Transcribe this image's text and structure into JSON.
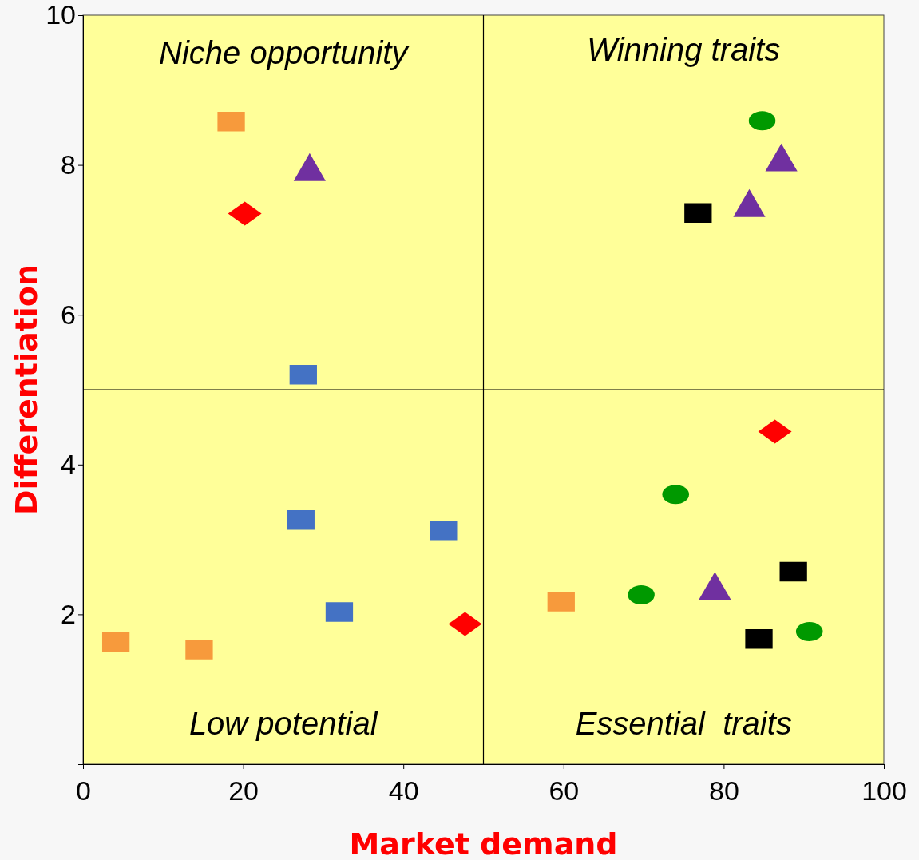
{
  "chart_data": {
    "type": "scatter",
    "xlabel": "Market demand",
    "ylabel": "Differentiation",
    "xlim": [
      0,
      100
    ],
    "ylim": [
      0,
      10
    ],
    "xticks": [
      0,
      20,
      40,
      60,
      80,
      100
    ],
    "yticks": [
      2,
      4,
      6,
      8,
      10
    ],
    "grid": false,
    "legend": false,
    "annotations": [
      "Niche opportunity",
      "Winning traits",
      "Low potential",
      "Essential  traits"
    ],
    "ref_lines": [
      {
        "axis": "x",
        "value": 50,
        "color": "#000000"
      },
      {
        "axis": "y",
        "value": 5,
        "color": "#000000"
      }
    ],
    "series": [
      {
        "color": "#f79a3c",
        "marker": "square",
        "x": [
          18.5,
          4.1,
          14.5,
          59.7
        ],
        "values": [
          8.58,
          1.63,
          1.53,
          2.17
        ]
      },
      {
        "color": "#7030a0",
        "marker": "triangle",
        "x": [
          28.3,
          87.2,
          83.2,
          78.9
        ],
        "values": [
          7.91,
          8.04,
          7.43,
          2.32
        ]
      },
      {
        "color": "#ff0000",
        "marker": "diamond",
        "x": [
          20.2,
          47.7,
          86.4
        ],
        "values": [
          7.35,
          1.87,
          4.44
        ]
      },
      {
        "color": "#4472c4",
        "marker": "square",
        "x": [
          27.5,
          27.2,
          45.0,
          32.0
        ],
        "values": [
          5.2,
          3.26,
          3.12,
          2.03
        ]
      },
      {
        "color": "#009900",
        "marker": "circle",
        "x": [
          84.8,
          74.0,
          69.7,
          90.7
        ],
        "values": [
          8.59,
          3.6,
          2.26,
          1.77
        ]
      },
      {
        "color": "#000000",
        "marker": "square",
        "x": [
          76.8,
          88.7,
          84.4
        ],
        "values": [
          7.36,
          2.57,
          1.67
        ]
      }
    ]
  }
}
